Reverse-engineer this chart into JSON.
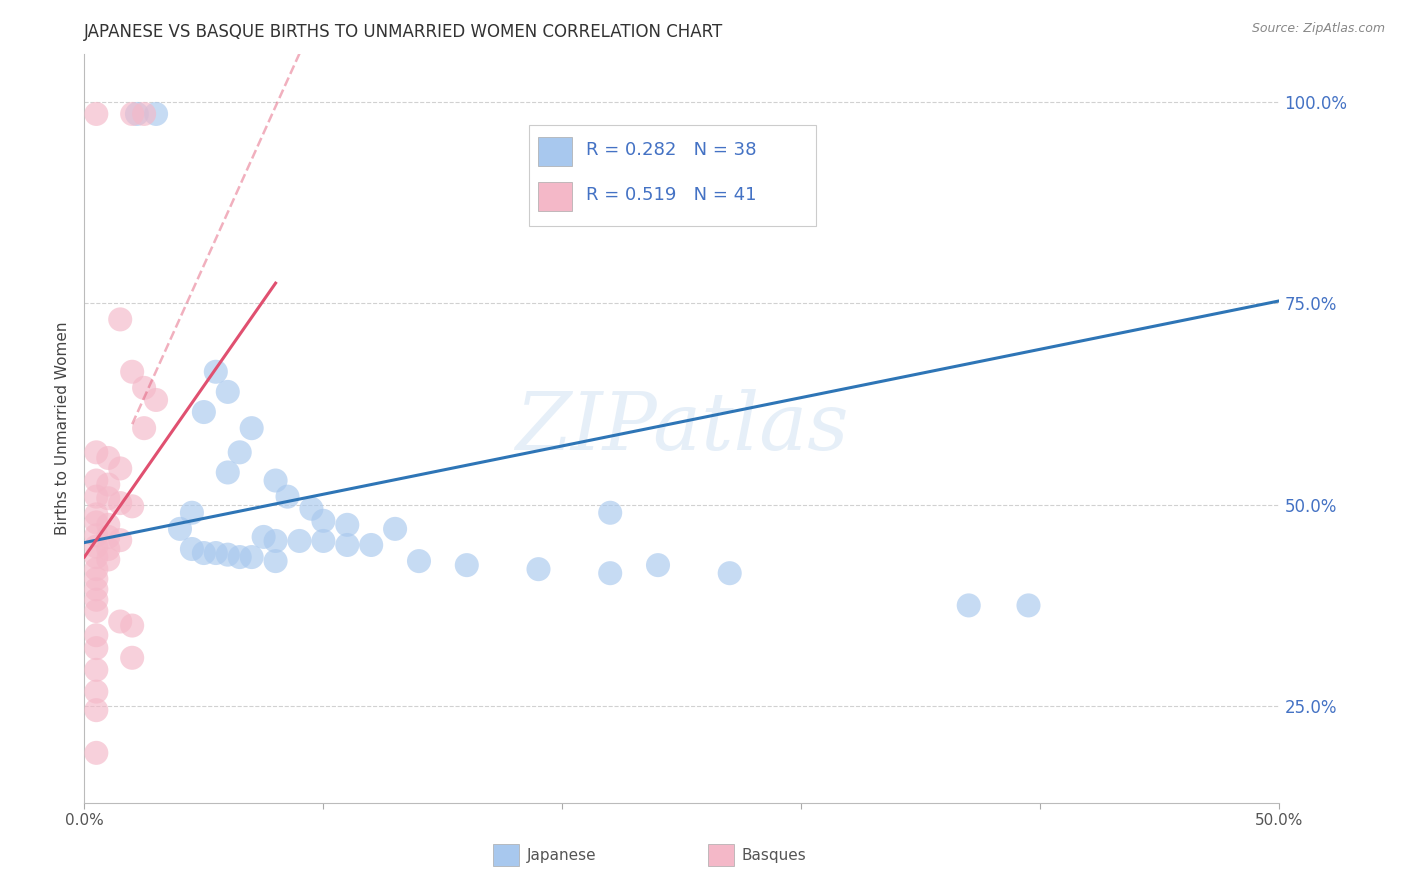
{
  "title": "JAPANESE VS BASQUE BIRTHS TO UNMARRIED WOMEN CORRELATION CHART",
  "source": "Source: ZipAtlas.com",
  "ylabel": "Births to Unmarried Women",
  "xlim": [
    0.0,
    0.5
  ],
  "ylim": [
    0.13,
    1.06
  ],
  "xtick_positions": [
    0.0,
    0.1,
    0.2,
    0.3,
    0.4,
    0.5
  ],
  "xtick_labels": [
    "0.0%",
    "",
    "",
    "",
    "",
    "50.0%"
  ],
  "ytick_values": [
    0.25,
    0.5,
    0.75,
    1.0
  ],
  "ytick_labels": [
    "25.0%",
    "50.0%",
    "75.0%",
    "100.0%"
  ],
  "japanese_color": "#A8C8EE",
  "basques_color": "#F4B8C8",
  "japanese_line_color": "#2E75B6",
  "basques_line_color": "#E05070",
  "japanese_scatter": [
    [
      0.022,
      0.985
    ],
    [
      0.03,
      0.985
    ],
    [
      0.055,
      0.665
    ],
    [
      0.06,
      0.64
    ],
    [
      0.05,
      0.615
    ],
    [
      0.07,
      0.595
    ],
    [
      0.065,
      0.565
    ],
    [
      0.06,
      0.54
    ],
    [
      0.08,
      0.53
    ],
    [
      0.085,
      0.51
    ],
    [
      0.095,
      0.495
    ],
    [
      0.045,
      0.49
    ],
    [
      0.1,
      0.48
    ],
    [
      0.11,
      0.475
    ],
    [
      0.13,
      0.47
    ],
    [
      0.22,
      0.49
    ],
    [
      0.04,
      0.47
    ],
    [
      0.075,
      0.46
    ],
    [
      0.08,
      0.455
    ],
    [
      0.09,
      0.455
    ],
    [
      0.1,
      0.455
    ],
    [
      0.11,
      0.45
    ],
    [
      0.12,
      0.45
    ],
    [
      0.045,
      0.445
    ],
    [
      0.05,
      0.44
    ],
    [
      0.055,
      0.44
    ],
    [
      0.06,
      0.438
    ],
    [
      0.065,
      0.435
    ],
    [
      0.07,
      0.435
    ],
    [
      0.08,
      0.43
    ],
    [
      0.14,
      0.43
    ],
    [
      0.16,
      0.425
    ],
    [
      0.24,
      0.425
    ],
    [
      0.19,
      0.42
    ],
    [
      0.22,
      0.415
    ],
    [
      0.27,
      0.415
    ],
    [
      0.37,
      0.375
    ],
    [
      0.395,
      0.375
    ]
  ],
  "basques_scatter": [
    [
      0.005,
      0.985
    ],
    [
      0.02,
      0.985
    ],
    [
      0.025,
      0.985
    ],
    [
      0.015,
      0.73
    ],
    [
      0.02,
      0.665
    ],
    [
      0.025,
      0.645
    ],
    [
      0.03,
      0.63
    ],
    [
      0.025,
      0.595
    ],
    [
      0.005,
      0.565
    ],
    [
      0.01,
      0.558
    ],
    [
      0.015,
      0.545
    ],
    [
      0.005,
      0.53
    ],
    [
      0.01,
      0.525
    ],
    [
      0.005,
      0.51
    ],
    [
      0.01,
      0.508
    ],
    [
      0.015,
      0.502
    ],
    [
      0.02,
      0.498
    ],
    [
      0.005,
      0.488
    ],
    [
      0.005,
      0.478
    ],
    [
      0.01,
      0.475
    ],
    [
      0.005,
      0.462
    ],
    [
      0.01,
      0.46
    ],
    [
      0.015,
      0.456
    ],
    [
      0.005,
      0.448
    ],
    [
      0.01,
      0.445
    ],
    [
      0.005,
      0.435
    ],
    [
      0.01,
      0.432
    ],
    [
      0.005,
      0.42
    ],
    [
      0.005,
      0.408
    ],
    [
      0.005,
      0.395
    ],
    [
      0.005,
      0.382
    ],
    [
      0.005,
      0.368
    ],
    [
      0.015,
      0.355
    ],
    [
      0.02,
      0.35
    ],
    [
      0.005,
      0.338
    ],
    [
      0.005,
      0.322
    ],
    [
      0.02,
      0.31
    ],
    [
      0.005,
      0.295
    ],
    [
      0.005,
      0.268
    ],
    [
      0.005,
      0.245
    ],
    [
      0.005,
      0.192
    ]
  ],
  "japanese_line": {
    "x0": 0.0,
    "y0": 0.453,
    "x1": 0.5,
    "y1": 0.753
  },
  "basques_line_solid": {
    "x0": 0.0,
    "y0": 0.435,
    "x1": 0.08,
    "y1": 0.775
  },
  "basques_line_dashed": {
    "x0": 0.02,
    "y0": 0.6,
    "x1": 0.09,
    "y1": 1.06
  },
  "watermark": "ZIPatlas",
  "background_color": "#FFFFFF",
  "grid_color": "#CCCCCC"
}
